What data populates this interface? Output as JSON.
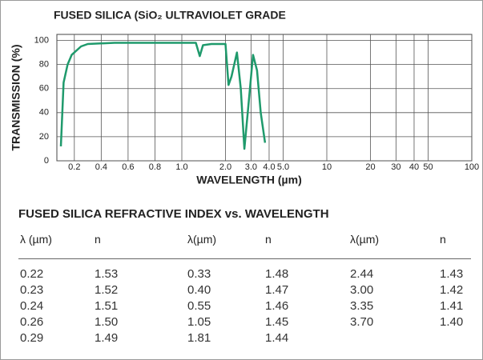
{
  "chart_data": {
    "type": "line",
    "title": "FUSED SILICA (SiO₂ ULTRAVIOLET GRADE",
    "ylabel": "TRANSMISSION (%)",
    "xlabel": "WAVELENGTH (µm)",
    "x": [
      0.1,
      0.12,
      0.15,
      0.18,
      0.25,
      0.3,
      0.5,
      0.8,
      1.0,
      1.25,
      1.33,
      1.4,
      1.6,
      2.0,
      2.1,
      2.2,
      2.4,
      2.55,
      2.7,
      2.85,
      3.1,
      3.3,
      3.5,
      3.75
    ],
    "values": [
      12,
      65,
      80,
      88,
      95,
      97,
      98,
      98,
      98,
      98,
      87,
      96,
      97,
      97,
      63,
      70,
      90,
      60,
      10,
      40,
      88,
      75,
      40,
      15
    ],
    "color": "#1f9a6c",
    "xscale": "linear-log",
    "xscale_break": 1,
    "xlim": [
      0.07,
      100
    ],
    "xticks": [
      0.2,
      0.4,
      0.6,
      0.8,
      {
        "value": 1,
        "label": "1.0"
      },
      {
        "value": 2,
        "label": "2.0"
      },
      {
        "value": 3,
        "label": "3.0"
      },
      {
        "value": 4,
        "label": "4.0"
      },
      {
        "value": 5,
        "label": "5.0"
      },
      10,
      20,
      30,
      40,
      50,
      100
    ],
    "ylim": [
      0,
      105
    ],
    "yticks": [
      0,
      20,
      40,
      60,
      80,
      100
    ],
    "grid": true
  },
  "table": {
    "title": "FUSED SILICA REFRACTIVE INDEX vs. WAVELENGTH",
    "columns": [
      "λ (µm)",
      "n",
      "λ(µm)",
      "n",
      "λ(µm)",
      "n"
    ],
    "rows": [
      [
        "0.22",
        "1.53",
        "0.33",
        "1.48",
        "2.44",
        "1.43"
      ],
      [
        "0.23",
        "1.52",
        "0.40",
        "1.47",
        "3.00",
        "1.42"
      ],
      [
        "0.24",
        "1.51",
        "0.55",
        "1.46",
        "3.35",
        "1.41"
      ],
      [
        "0.26",
        "1.50",
        "1.05",
        "1.45",
        "3.70",
        "1.40"
      ],
      [
        "0.29",
        "1.49",
        "1.81",
        "1.44"
      ]
    ]
  }
}
